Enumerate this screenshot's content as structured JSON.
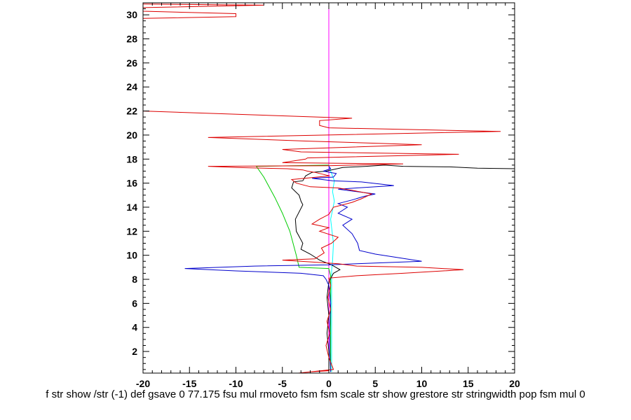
{
  "chart_data": {
    "type": "line",
    "title": "",
    "xlabel": "f str show /str (-1) def gsave 0 77.175 fsu mul rmoveto fsm fsm scale str show grestore str stringwidth pop fsm mul 0",
    "ylabel": "",
    "xlim": [
      -20,
      20
    ],
    "ylim": [
      0.2,
      31
    ],
    "xticks": [
      -20,
      -15,
      -10,
      -5,
      0,
      5,
      10,
      15,
      20
    ],
    "yticks": [
      2,
      4,
      6,
      8,
      10,
      12,
      14,
      16,
      18,
      20,
      22,
      24,
      26,
      28,
      30
    ],
    "grid": false,
    "legend": "none",
    "series": [
      {
        "color": "#ff00ff",
        "points": [
          [
            0,
            0.3
          ],
          [
            0,
            31
          ]
        ]
      },
      {
        "color": "#00ffff",
        "points": [
          [
            0.3,
            0.3
          ],
          [
            0.3,
            8.8
          ],
          [
            0.4,
            9.5
          ],
          [
            0.5,
            11
          ],
          [
            0.2,
            13
          ],
          [
            0.6,
            14.5
          ],
          [
            0.4,
            15.3
          ],
          [
            0.6,
            16.2
          ],
          [
            0.1,
            17.2
          ],
          [
            0,
            17.5
          ]
        ]
      },
      {
        "color": "#00cc00",
        "points": [
          [
            0.2,
            0.3
          ],
          [
            0.2,
            8.3
          ],
          [
            0,
            8.9
          ],
          [
            -3.2,
            9.0
          ],
          [
            -3.5,
            10
          ],
          [
            -4.2,
            12
          ],
          [
            -5,
            13.5
          ],
          [
            -5.8,
            14.8
          ],
          [
            -7,
            16.5
          ],
          [
            -7.8,
            17.4
          ],
          [
            0,
            17.5
          ]
        ]
      },
      {
        "color": "#000000",
        "points": [
          [
            0,
            0.5
          ],
          [
            0,
            2
          ],
          [
            -0.2,
            3.5
          ],
          [
            0,
            5
          ],
          [
            -0.2,
            6.5
          ],
          [
            0,
            7.8
          ],
          [
            0.5,
            8.5
          ],
          [
            1.2,
            8.8
          ],
          [
            0.3,
            9.2
          ],
          [
            -1,
            9.6
          ],
          [
            -2,
            10.1
          ],
          [
            -3,
            10.5
          ],
          [
            -2.8,
            11
          ],
          [
            -3.5,
            12
          ],
          [
            -3.6,
            13
          ],
          [
            -2.8,
            14.2
          ],
          [
            -3,
            14.5
          ],
          [
            -3.2,
            15
          ],
          [
            -4,
            15.6
          ],
          [
            -3.8,
            16.1
          ],
          [
            -2.8,
            16.2
          ],
          [
            -2.5,
            16.6
          ],
          [
            -1.8,
            16.9
          ],
          [
            -0.3,
            17
          ],
          [
            1.5,
            17.3
          ],
          [
            4,
            17.4
          ],
          [
            6,
            17.5
          ],
          [
            8,
            17.4
          ],
          [
            13,
            17.35
          ],
          [
            16,
            17.25
          ],
          [
            20,
            17.2
          ]
        ]
      },
      {
        "color": "#0000cc",
        "points": [
          [
            0.2,
            0.3
          ],
          [
            0.1,
            2
          ],
          [
            0.1,
            4
          ],
          [
            0.2,
            6
          ],
          [
            0,
            7.5
          ],
          [
            -0.3,
            8
          ],
          [
            -0.6,
            8.3
          ],
          [
            -3,
            8.5
          ],
          [
            -10,
            8.7
          ],
          [
            -15.5,
            8.9
          ],
          [
            -8,
            9.1
          ],
          [
            0,
            9.2
          ],
          [
            3,
            9.3
          ],
          [
            10,
            9.5
          ],
          [
            5,
            10.1
          ],
          [
            3.3,
            10.4
          ],
          [
            3.1,
            11
          ],
          [
            2.5,
            11.8
          ],
          [
            1.5,
            12.5
          ],
          [
            2.5,
            13
          ],
          [
            1,
            13.5
          ],
          [
            2,
            14
          ],
          [
            1,
            14.3
          ],
          [
            2.5,
            14.6
          ],
          [
            3.8,
            14.9
          ],
          [
            5,
            15.1
          ],
          [
            3,
            15.3
          ],
          [
            1,
            15.5
          ],
          [
            3,
            15.6
          ],
          [
            7,
            15.8
          ],
          [
            3.5,
            16.1
          ],
          [
            0.4,
            16.2
          ],
          [
            -1.8,
            16.4
          ],
          [
            0.5,
            16.5
          ],
          [
            0.8,
            16.8
          ],
          [
            -0.6,
            17.0
          ],
          [
            0.2,
            17.2
          ],
          [
            0,
            17.4
          ]
        ]
      },
      {
        "color": "#dd0000",
        "points": [
          [
            0,
            0.4
          ],
          [
            -2,
            0.3
          ],
          [
            -4.5,
            0.1
          ],
          [
            0.5,
            0.5
          ],
          [
            0,
            1.5
          ],
          [
            -0.3,
            2.5
          ],
          [
            0.1,
            3.5
          ],
          [
            -0.2,
            4.5
          ],
          [
            0.2,
            5.5
          ],
          [
            -0.1,
            6.5
          ],
          [
            0.2,
            7.5
          ],
          [
            0,
            8.1
          ],
          [
            3,
            8.3
          ],
          [
            8,
            8.5
          ],
          [
            14.5,
            8.8
          ],
          [
            10,
            9.0
          ],
          [
            3,
            9.1
          ],
          [
            1,
            9.3
          ],
          [
            -1,
            9.4
          ],
          [
            -3,
            9.5
          ],
          [
            -5,
            9.6
          ],
          [
            -1.5,
            9.7
          ],
          [
            -0.5,
            10.2
          ],
          [
            -0.8,
            10.6
          ],
          [
            0.3,
            11
          ],
          [
            1,
            11.5
          ],
          [
            -1,
            12
          ],
          [
            0,
            12.3
          ],
          [
            -1.8,
            12.6
          ],
          [
            -1,
            13
          ],
          [
            0,
            13.4
          ],
          [
            0.5,
            14
          ],
          [
            2.5,
            14.4
          ],
          [
            3.5,
            14.7
          ],
          [
            4.6,
            15.1
          ],
          [
            2.5,
            15.4
          ],
          [
            1,
            15.6
          ],
          [
            -2,
            15.7
          ],
          [
            -3.5,
            16.0
          ],
          [
            -4,
            16.3
          ],
          [
            0.1,
            16.6
          ],
          [
            -1.5,
            16.9
          ],
          [
            -2.3,
            17.0
          ],
          [
            -2.8,
            17.1
          ],
          [
            -4.5,
            17.2
          ],
          [
            -10,
            17.3
          ],
          [
            -13,
            17.4
          ],
          [
            0,
            17.45
          ],
          [
            2.5,
            17.5
          ],
          [
            8,
            17.6
          ],
          [
            -5,
            17.7
          ],
          [
            -2.5,
            18.0
          ],
          [
            -2.3,
            18.1
          ],
          [
            14,
            18.4
          ],
          [
            -3,
            18.6
          ],
          [
            -5,
            18.8
          ],
          [
            10,
            19.2
          ],
          [
            -2.5,
            19.5
          ],
          [
            -13,
            19.8
          ],
          [
            18.5,
            20.3
          ],
          [
            0,
            20.6
          ],
          [
            -1,
            20.8
          ],
          [
            -1,
            21.2
          ],
          [
            2.5,
            21.4
          ],
          [
            -20,
            22
          ],
          [
            -20,
            29.7
          ],
          [
            -10,
            29.85
          ],
          [
            -10,
            30.1
          ],
          [
            -20,
            30.3
          ],
          [
            -20,
            30.6
          ],
          [
            -7,
            30.8
          ],
          [
            -20,
            30.9
          ]
        ]
      }
    ]
  }
}
